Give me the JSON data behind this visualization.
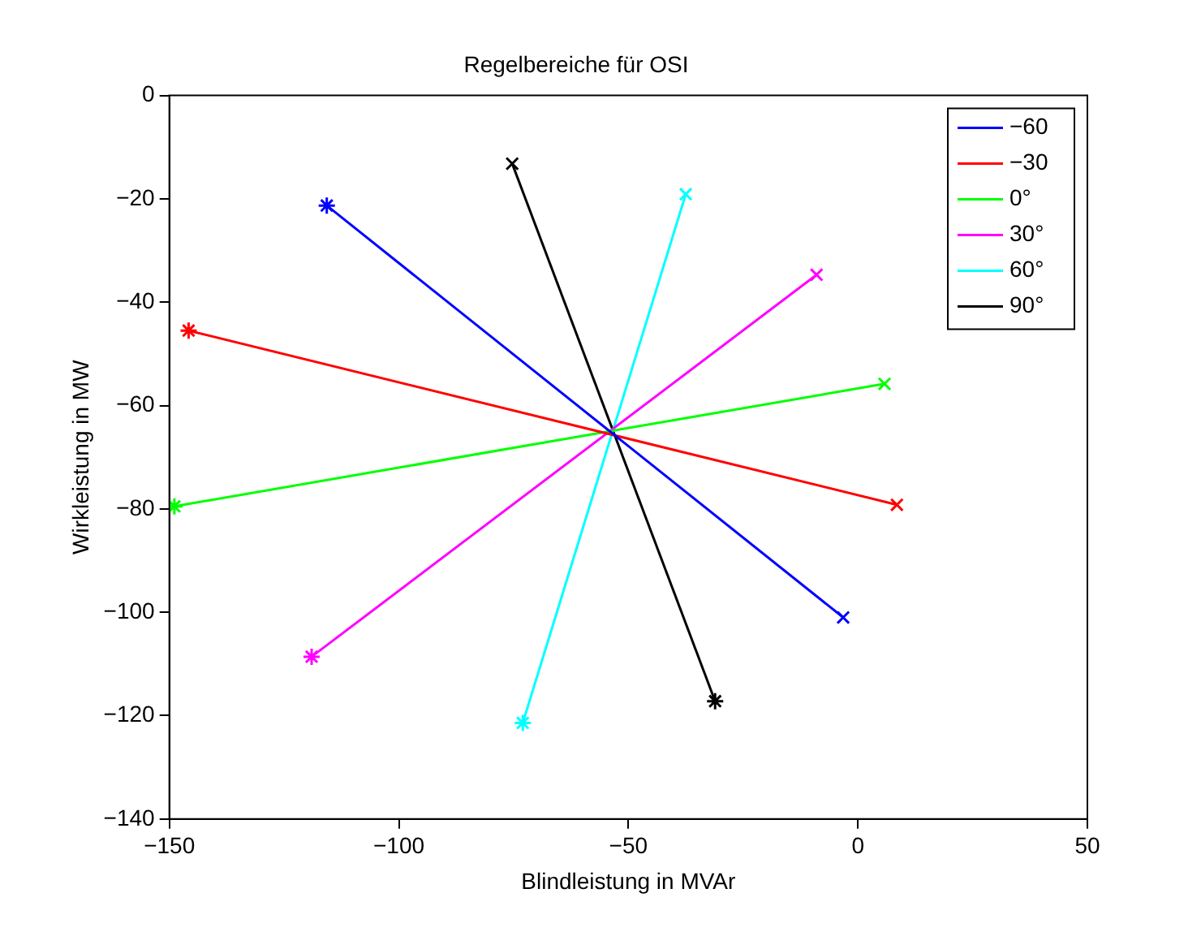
{
  "chart_data": {
    "type": "line",
    "title": "Regelbereiche für OSI",
    "xlabel": "Blindleistung in MVAr",
    "ylabel": "Wirkleistung in MW",
    "xlim": [
      -150,
      50
    ],
    "xticks": [
      -150,
      -100,
      -50,
      0,
      50
    ],
    "ylim": [
      -140,
      0
    ],
    "yticks": [
      -140,
      -120,
      -100,
      -80,
      -60,
      -40,
      -20,
      0
    ],
    "grid": false,
    "legend": "top right",
    "line_style": "solid",
    "series": [
      {
        "name": "−60",
        "color": "#0000ff",
        "x": [
          -115.7,
          -3.2
        ],
        "values": [
          -21.3,
          -101
        ],
        "marker": [
          "star",
          "cross"
        ]
      },
      {
        "name": "−30",
        "color": "#ff0000",
        "x": [
          -145.8,
          8.5
        ],
        "values": [
          -45.5,
          -79.2
        ],
        "marker": [
          "star",
          "cross"
        ]
      },
      {
        "name": "0°",
        "color": "#00ff00",
        "x": [
          -148.9,
          5.8
        ],
        "values": [
          -79.5,
          -55.8
        ],
        "marker": [
          "star",
          "cross"
        ]
      },
      {
        "name": "30°",
        "color": "#ff00ff",
        "x": [
          -119,
          -9
        ],
        "values": [
          -108.6,
          -34.7
        ],
        "marker": [
          "star",
          "cross"
        ]
      },
      {
        "name": "60°",
        "color": "#00ffff",
        "x": [
          -73,
          -37.5
        ],
        "values": [
          -121.4,
          -19.1
        ],
        "marker": [
          "star",
          "cross"
        ]
      },
      {
        "name": "90°",
        "color": "#000000",
        "x": [
          -75.3,
          -31.1
        ],
        "values": [
          -13.2,
          -117.2
        ],
        "marker": [
          "cross",
          "star"
        ]
      }
    ]
  }
}
